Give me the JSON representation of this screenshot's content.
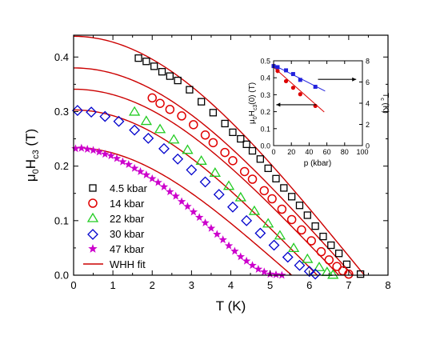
{
  "chart_data": [
    {
      "id": "main",
      "type": "scatter",
      "title": "",
      "xlabel": "T (K)",
      "ylabel": "μ0Hc3 (T)",
      "ylabel_parts": {
        "mu": "μ",
        "mu_sub": "0",
        "H": "H",
        "H_sub": "c3",
        "unit": " (T)"
      },
      "xlim": [
        0,
        8
      ],
      "ylim": [
        0,
        0.44
      ],
      "xticks": [
        "0",
        "1",
        "2",
        "3",
        "4",
        "5",
        "6",
        "7",
        "8"
      ],
      "yticks": [
        "0.0",
        "0.1",
        "0.2",
        "0.3",
        "0.4"
      ],
      "xtick_values": [
        0,
        1,
        2,
        3,
        4,
        5,
        6,
        7,
        8
      ],
      "ytick_values": [
        0,
        0.1,
        0.2,
        0.3,
        0.4
      ],
      "grid": false,
      "legend_position": "bottom-left",
      "series": [
        {
          "name": "4.5 kbar",
          "marker": "square",
          "color": "#000000",
          "x": [
            1.65,
            1.85,
            2.05,
            2.25,
            2.45,
            2.65,
            2.95,
            3.25,
            3.55,
            3.85,
            4.05,
            4.25,
            4.4,
            4.55,
            4.75,
            4.95,
            5.15,
            5.35,
            5.55,
            5.75,
            5.95,
            6.15,
            6.35,
            6.55,
            6.75,
            6.95,
            7.3
          ],
          "y": [
            0.398,
            0.392,
            0.383,
            0.373,
            0.365,
            0.357,
            0.34,
            0.318,
            0.298,
            0.278,
            0.262,
            0.25,
            0.24,
            0.228,
            0.213,
            0.196,
            0.177,
            0.16,
            0.144,
            0.128,
            0.11,
            0.09,
            0.071,
            0.055,
            0.04,
            0.02,
            0.002
          ]
        },
        {
          "name": "14 kbar",
          "marker": "circle",
          "color": "#e00000",
          "x": [
            2.0,
            2.2,
            2.45,
            2.75,
            3.05,
            3.35,
            3.55,
            3.85,
            4.05,
            4.35,
            4.55,
            4.85,
            5.05,
            5.3,
            5.55,
            5.8,
            6.05,
            6.3,
            6.5,
            6.7,
            6.85,
            7.0
          ],
          "y": [
            0.325,
            0.315,
            0.304,
            0.292,
            0.276,
            0.257,
            0.243,
            0.225,
            0.21,
            0.19,
            0.176,
            0.155,
            0.14,
            0.121,
            0.102,
            0.083,
            0.063,
            0.043,
            0.028,
            0.016,
            0.008,
            0.002
          ]
        },
        {
          "name": "22 kbar",
          "marker": "triangle",
          "color": "#22cc22",
          "x": [
            1.55,
            1.85,
            2.2,
            2.55,
            2.9,
            3.25,
            3.6,
            3.95,
            4.25,
            4.6,
            4.95,
            5.25,
            5.6,
            5.95,
            6.25,
            6.45,
            6.6
          ],
          "y": [
            0.3,
            0.283,
            0.268,
            0.249,
            0.23,
            0.21,
            0.188,
            0.164,
            0.143,
            0.118,
            0.095,
            0.073,
            0.05,
            0.03,
            0.015,
            0.006,
            0.001
          ]
        },
        {
          "name": "30 kbar",
          "marker": "diamond",
          "color": "#0000cc",
          "x": [
            0.1,
            0.45,
            0.8,
            1.15,
            1.55,
            1.9,
            2.3,
            2.65,
            3.0,
            3.35,
            3.7,
            4.05,
            4.4,
            4.75,
            5.1,
            5.45,
            5.75,
            6.0,
            6.15
          ],
          "y": [
            0.302,
            0.299,
            0.291,
            0.282,
            0.266,
            0.251,
            0.232,
            0.213,
            0.193,
            0.171,
            0.148,
            0.125,
            0.1,
            0.077,
            0.055,
            0.033,
            0.018,
            0.007,
            0.002
          ]
        },
        {
          "name": "47 kbar",
          "marker": "star",
          "color": "#cc00cc",
          "x": [
            0.05,
            0.2,
            0.35,
            0.5,
            0.65,
            0.8,
            0.95,
            1.1,
            1.25,
            1.4,
            1.55,
            1.7,
            1.85,
            2.0,
            2.15,
            2.3,
            2.45,
            2.6,
            2.75,
            2.9,
            3.05,
            3.2,
            3.35,
            3.5,
            3.65,
            3.8,
            3.95,
            4.1,
            4.25,
            4.4,
            4.55,
            4.7,
            4.85,
            5.0,
            5.15,
            5.3
          ],
          "y": [
            0.232,
            0.233,
            0.231,
            0.229,
            0.226,
            0.222,
            0.219,
            0.214,
            0.208,
            0.203,
            0.196,
            0.19,
            0.184,
            0.177,
            0.17,
            0.162,
            0.153,
            0.145,
            0.135,
            0.126,
            0.116,
            0.106,
            0.096,
            0.086,
            0.075,
            0.065,
            0.054,
            0.044,
            0.034,
            0.026,
            0.018,
            0.011,
            0.006,
            0.002,
            0.001,
            0.0
          ]
        }
      ],
      "fit": {
        "name": "WHH fit",
        "color": "#cc0000",
        "curves": [
          {
            "h0": 0.438,
            "tc": 7.4
          },
          {
            "h0": 0.38,
            "tc": 7.1
          },
          {
            "h0": 0.341,
            "tc": 6.75
          },
          {
            "h0": 0.303,
            "tc": 6.2
          },
          {
            "h0": 0.234,
            "tc": 5.55
          }
        ]
      }
    },
    {
      "id": "inset",
      "type": "scatter",
      "xlabel": "p (kbar)",
      "ylabel_left": "μ0Hc3(0) (T)",
      "ylabel_left_parts": {
        "mu": "μ",
        "mu_sub": "0",
        "H": "H",
        "H_sub": "c3",
        "tail": "(0) (T)"
      },
      "ylabel_right": "Tc (K)",
      "ylabel_right_parts": {
        "T": "T",
        "T_sub": "c",
        "tail": " (K)"
      },
      "xlim": [
        0,
        100
      ],
      "ylim_left": [
        0,
        0.5
      ],
      "ylim_right": [
        0,
        8
      ],
      "xticks": [
        "0",
        "20",
        "40",
        "60",
        "80",
        "100"
      ],
      "xtick_values": [
        0,
        20,
        40,
        60,
        80,
        100
      ],
      "yticks_left": [
        "0.0",
        "0.1",
        "0.2",
        "0.3",
        "0.4",
        "0.5"
      ],
      "ytick_values_left": [
        0,
        0.1,
        0.2,
        0.3,
        0.4,
        0.5
      ],
      "yticks_right": [
        "0",
        "2",
        "4",
        "6",
        "8"
      ],
      "ytick_values_right": [
        0,
        2,
        4,
        6,
        8
      ],
      "series": [
        {
          "name": "μ0Hc3(0)",
          "axis": "left",
          "marker": "circle-filled",
          "color": "#dd0000",
          "x": [
            0,
            4.5,
            14,
            22,
            30,
            47
          ],
          "y": [
            0.47,
            0.44,
            0.38,
            0.341,
            0.303,
            0.234
          ],
          "line": {
            "x": [
              0,
              57
            ],
            "y": [
              0.462,
              0.198
            ]
          },
          "arrow": {
            "x_from": 48,
            "x_to": 3,
            "y": 0.241
          }
        },
        {
          "name": "Tc",
          "axis": "right",
          "marker": "square-filled",
          "color": "#2222dd",
          "x": [
            0,
            4.5,
            14,
            22,
            30,
            47
          ],
          "y": [
            7.5,
            7.4,
            7.1,
            6.75,
            6.2,
            5.55
          ],
          "line": {
            "x": [
              0,
              58
            ],
            "y": [
              7.6,
              5.15
            ]
          },
          "arrow": {
            "x_from": 50,
            "x_to": 93,
            "y": 6.25
          }
        }
      ]
    }
  ]
}
